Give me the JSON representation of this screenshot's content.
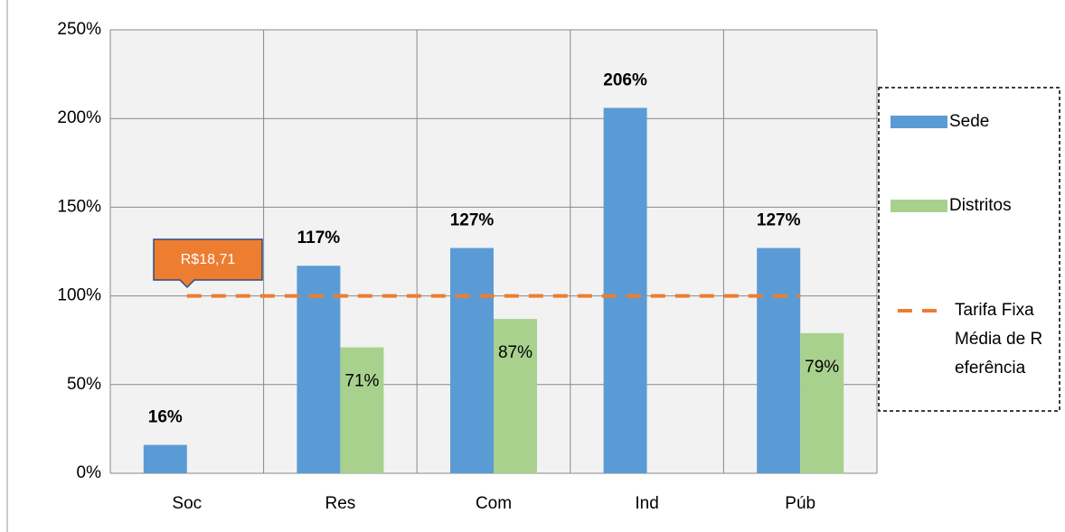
{
  "chart_data": {
    "type": "bar",
    "categories": [
      "Soc",
      "Res",
      "Com",
      "Ind",
      "Púb"
    ],
    "series": [
      {
        "name": "Sede",
        "color": "#5b9bd5",
        "values": [
          16,
          117,
          127,
          206,
          127
        ],
        "value_labels": [
          "16%",
          "117%",
          "127%",
          "206%",
          "127%"
        ]
      },
      {
        "name": "Distritos",
        "color": "#a9d18e",
        "values": [
          null,
          71,
          87,
          null,
          79
        ],
        "value_labels": [
          null,
          "71%",
          "87%",
          null,
          "79%"
        ]
      },
      {
        "name": "Tarifa Fixa Média de Referência",
        "type": "line",
        "color": "#ed7d31",
        "values": [
          100,
          100,
          100,
          100,
          100
        ]
      }
    ],
    "ylim": [
      0,
      250
    ],
    "yticks": [
      {
        "value": 0,
        "label": "0%"
      },
      {
        "value": 50,
        "label": "50%"
      },
      {
        "value": 100,
        "label": "100%"
      },
      {
        "value": 150,
        "label": "150%"
      },
      {
        "value": 200,
        "label": "200%"
      },
      {
        "value": 250,
        "label": "250%"
      }
    ],
    "grid": true,
    "legend": "right",
    "annotations": [
      "R$18,71"
    ]
  }
}
